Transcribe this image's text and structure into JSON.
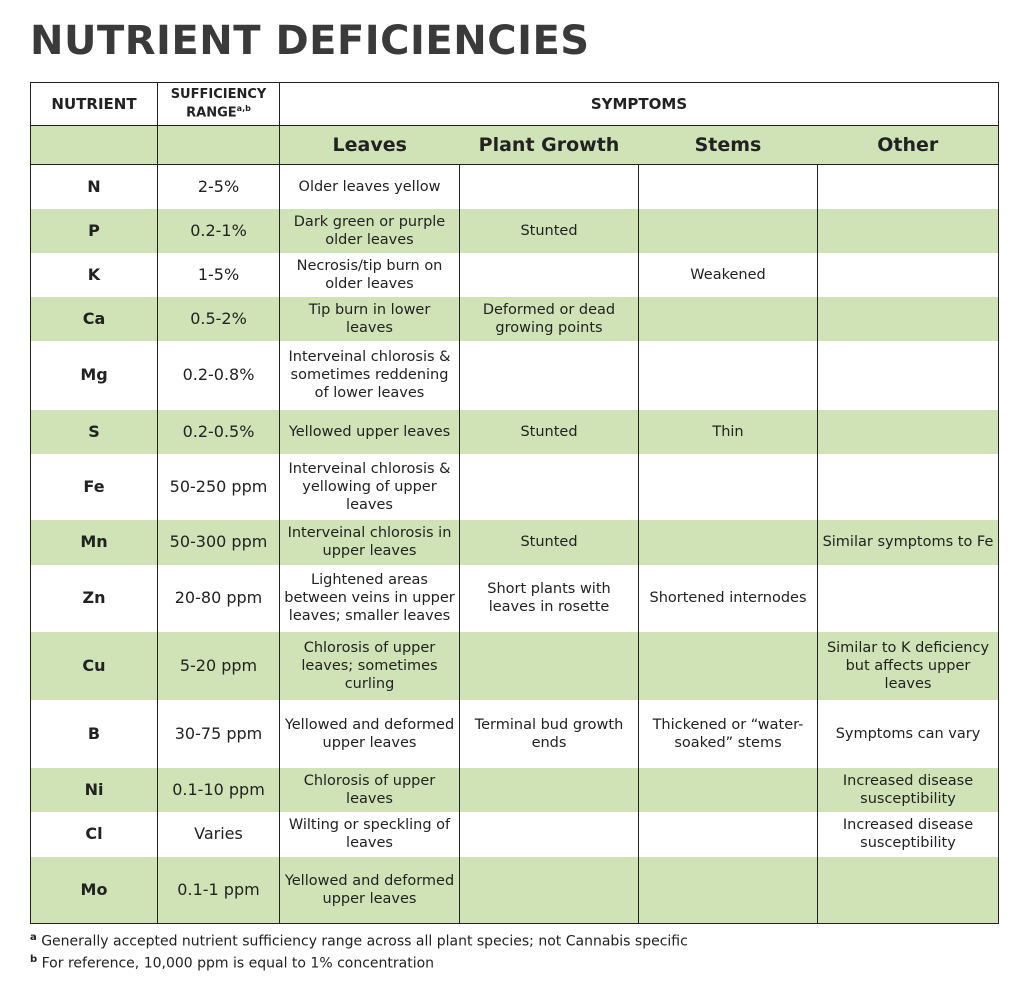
{
  "header": {
    "title": "NUTRIENT DEFICIENCIES"
  },
  "table": {
    "head": {
      "nutrient": "NUTRIENT",
      "range": "SUFFICIENCY RANGE",
      "range_sup": "a,b",
      "symptoms": "SYMPTOMS"
    },
    "subhead": [
      "Leaves",
      "Plant Growth",
      "Stems",
      "Other"
    ],
    "rows": [
      [
        "N",
        "2-5%",
        "Older leaves yellow",
        null,
        null,
        null
      ],
      [
        "P",
        "0.2-1%",
        "Dark green or purple older leaves",
        "Stunted",
        null,
        null
      ],
      [
        "K",
        "1-5%",
        "Necrosis/tip burn on older leaves",
        null,
        "Weakened",
        null
      ],
      [
        "Ca",
        "0.5-2%",
        "Tip burn in lower leaves",
        "Deformed or dead growing points",
        null,
        null
      ],
      [
        "Mg",
        "0.2-0.8%",
        "Interveinal chlorosis & sometimes reddening of lower leaves",
        null,
        null,
        null
      ],
      [
        "S",
        "0.2-0.5%",
        "Yellowed upper leaves",
        "Stunted",
        "Thin",
        null
      ],
      [
        "Fe",
        "50-250 ppm",
        "Interveinal chlorosis & yellowing of upper leaves",
        null,
        null,
        null
      ],
      [
        "Mn",
        "50-300 ppm",
        "Interveinal chlorosis in upper leaves",
        "Stunted",
        null,
        "Similar symptoms to Fe"
      ],
      [
        "Zn",
        "20-80 ppm",
        "Lightened areas between veins in upper leaves; smaller leaves",
        "Short plants with leaves in rosette",
        "Shortened internodes",
        null
      ],
      [
        "Cu",
        "5-20 ppm",
        "Chlorosis of upper leaves; sometimes curling",
        null,
        null,
        "Similar to K deficiency but affects upper leaves"
      ],
      [
        "B",
        "30-75 ppm",
        "Yellowed and deformed upper leaves",
        "Terminal bud growth ends",
        "Thickened or “water-soaked” stems",
        "Symptoms can vary"
      ],
      [
        "Ni",
        "0.1-10 ppm",
        "Chlorosis of upper leaves",
        null,
        null,
        "Increased disease susceptibility"
      ],
      [
        "Cl",
        "Varies",
        "Wilting or speckling of leaves",
        null,
        null,
        "Increased disease susceptibility"
      ],
      [
        "Mo",
        "0.1-1 ppm",
        "Yellowed and deformed upper leaves",
        null,
        null,
        null
      ]
    ]
  },
  "footnotes": [
    {
      "marker": "a",
      "text": "Generally accepted nutrient sufficiency range across all plant species; not Cannabis specific"
    },
    {
      "marker": "b",
      "text": "For reference, 10,000 ppm is equal to 1% concentration"
    }
  ]
}
